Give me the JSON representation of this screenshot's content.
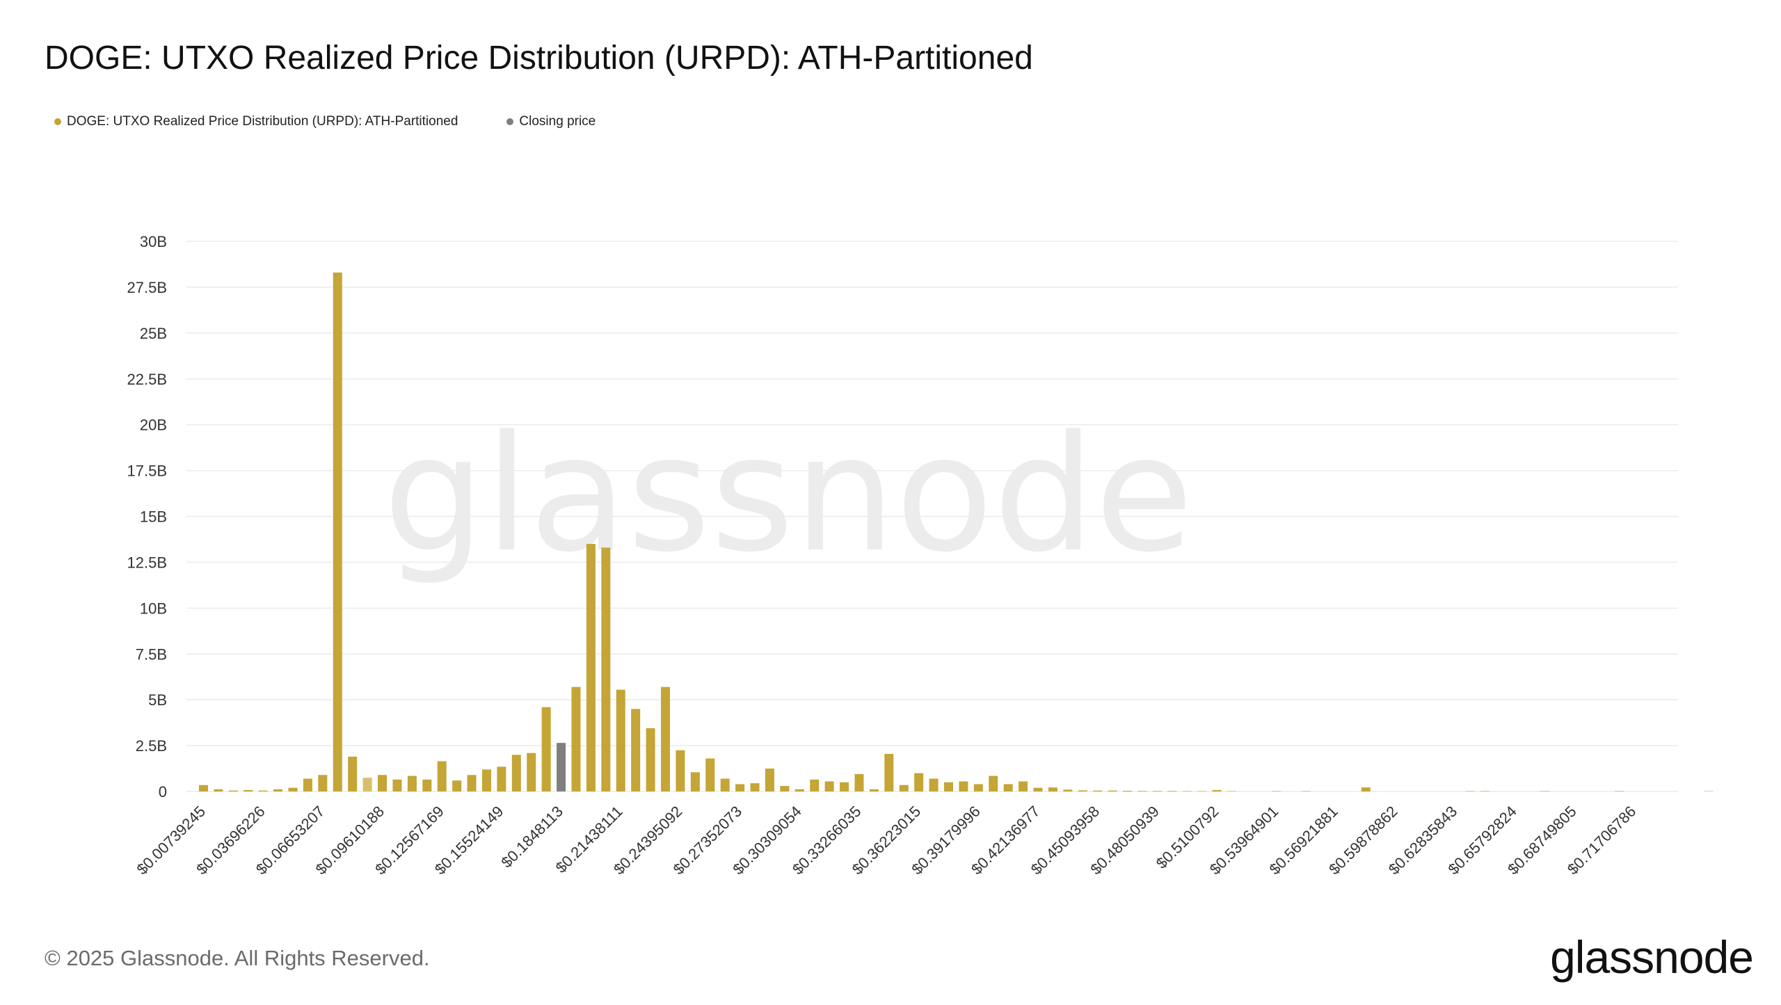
{
  "title": "DOGE: UTXO Realized Price Distribution (URPD): ATH-Partitioned",
  "legend": {
    "series_label": "DOGE: UTXO Realized Price Distribution (URPD): ATH-Partitioned",
    "closing_label": "Closing price"
  },
  "colors": {
    "series": "#c4a536",
    "series_light": "#d8c06a",
    "closing": "#7f7f7f",
    "grid": "#ebebeb",
    "axis_text": "#333333",
    "watermark": "#ececec"
  },
  "watermark": "glassnode",
  "footer": {
    "copyright": "© 2025 Glassnode. All Rights Reserved.",
    "brand": "glassnode"
  },
  "chart_data": {
    "type": "bar",
    "title": "DOGE: UTXO Realized Price Distribution (URPD): ATH-Partitioned",
    "xlabel": "",
    "ylabel": "",
    "ylim": [
      0,
      30
    ],
    "y_unit": "B",
    "y_ticks": [
      "0",
      "2.5B",
      "5B",
      "7.5B",
      "10B",
      "12.5B",
      "15B",
      "17.5B",
      "20B",
      "22.5B",
      "25B",
      "27.5B",
      "30B"
    ],
    "x_tick_labels": [
      "$0.00739245",
      "$0.03696226",
      "$0.06653207",
      "$0.09610188",
      "$0.12567169",
      "$0.15524149",
      "$0.1848113",
      "$0.21438111",
      "$0.24395092",
      "$0.27352073",
      "$0.30309054",
      "$0.33266035",
      "$0.36223015",
      "$0.39179996",
      "$0.42136977",
      "$0.45093958",
      "$0.48050939",
      "$0.5100792",
      "$0.53964901",
      "$0.56921881",
      "$0.59878862",
      "$0.62835843",
      "$0.65792824",
      "$0.68749805",
      "$0.71706786"
    ],
    "bins_per_tick": 4,
    "closing_price_bin": 24,
    "light_bins": [
      11
    ],
    "values": [
      0.35,
      0.12,
      0.05,
      0.08,
      0.05,
      0.12,
      0.2,
      0.7,
      0.9,
      28.3,
      1.9,
      0.75,
      0.9,
      0.65,
      0.85,
      0.65,
      1.65,
      0.6,
      0.9,
      1.2,
      1.35,
      2.0,
      2.1,
      4.6,
      2.65,
      5.7,
      13.5,
      13.3,
      5.55,
      4.5,
      3.45,
      5.7,
      2.25,
      1.05,
      1.8,
      0.7,
      0.4,
      0.45,
      1.25,
      0.3,
      0.12,
      0.65,
      0.55,
      0.5,
      0.95,
      0.12,
      2.05,
      0.35,
      1.0,
      0.7,
      0.5,
      0.55,
      0.4,
      0.85,
      0.4,
      0.55,
      0.2,
      0.22,
      0.1,
      0.06,
      0.05,
      0.05,
      0.04,
      0.03,
      0.03,
      0.03,
      0.02,
      0.02,
      0.08,
      0.02,
      0.0,
      0.0,
      0.02,
      0.0,
      0.02,
      0.0,
      0.0,
      0.0,
      0.22,
      0.0,
      0.0,
      0.0,
      0.0,
      0.0,
      0.0,
      0.02,
      0.02,
      0.0,
      0.0,
      0.0,
      0.02,
      0.0,
      0.0,
      0.0,
      0.0,
      0.02,
      0.0,
      0.0,
      0.0,
      0.0,
      0.0,
      0.02,
      0.0
    ]
  }
}
